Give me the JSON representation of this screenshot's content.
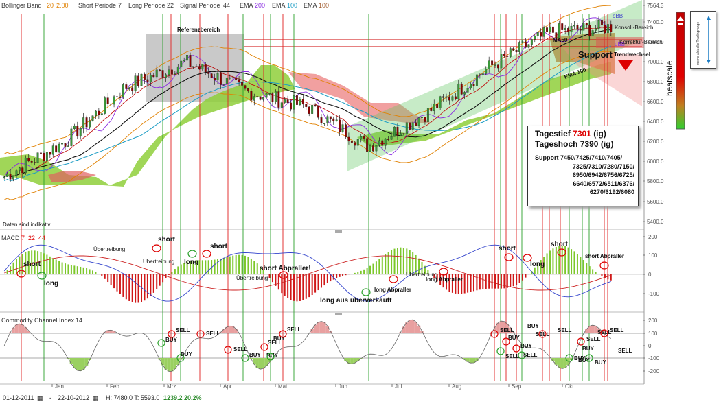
{
  "header": {
    "items": [
      {
        "label": "Bollinger Band",
        "value1": "20",
        "value2": "2.00"
      },
      {
        "label": "Short Periode",
        "value": "7"
      },
      {
        "label": "Long Periode",
        "value": "22"
      },
      {
        "label": "Signal Periode",
        "value": "44"
      },
      {
        "label": "EMA",
        "value": "200"
      },
      {
        "label": "EMA",
        "value": "100"
      },
      {
        "label": "EMA",
        "value": "100"
      }
    ],
    "colors": {
      "bb": "#e08000",
      "ema200": "#8a2be2",
      "ema100a": "#1a9cc4",
      "ema100b": "#a05a2c"
    }
  },
  "main_annotations": {
    "referenzbereich": "Referenzbereich",
    "obb": "oBB",
    "ubb": "uBB",
    "konsolidierung": "Konsol.-Bereich",
    "korrektur": "Korrektur-Bereich",
    "support": "Support",
    "trendwechsel": "Trendwechsel",
    "ma50": "MA50",
    "ema100": "EMA 100",
    "indikativ": "Daten sind indikativ",
    "heatscale": "heatscale",
    "tradingrange": "meine aktuelle Tradingrange"
  },
  "infobox": {
    "tagestief_label": "Tagestief",
    "tagestief_value": "7301",
    "tagestief_suffix": "(ig)",
    "tageshoch": "Tageshoch 7390 (ig)",
    "support_lines": [
      "Support 7450/7425/7410/7405/",
      "7325/7310/7280/7150/",
      "6950/6942/6756/6725/",
      "6640/6572/6511/6376/",
      "6270/6192/6080"
    ]
  },
  "price_axis": [
    "7564.3",
    "7400.0",
    "7200.0",
    "7000.0",
    "6800.0",
    "6600.0",
    "6400.0",
    "6200.0",
    "6000.0",
    "5800.0",
    "5600.0",
    "5400.0"
  ],
  "macd": {
    "title": "MACD",
    "params": [
      "7",
      "22",
      "44"
    ],
    "axis": [
      "200",
      "100",
      "0",
      "-100"
    ],
    "labels": [
      "short",
      "long",
      "Übertreibung",
      "Übertreibung",
      "short",
      "long",
      "short",
      "Übertreibung",
      "short Abpraller!",
      "long aus überverkauft",
      "long Abpraller",
      "Übertreibung",
      "long Abpraller",
      "short",
      "long",
      "short",
      "short Abpraller"
    ]
  },
  "cci": {
    "title": "Commodity Channel Index",
    "param": "14",
    "axis": [
      "200",
      "100",
      "0",
      "-100",
      "-200"
    ],
    "signals": [
      "BUY",
      "SELL",
      "BUY",
      "SELL",
      "SELL",
      "BUY",
      "BUY",
      "SELL",
      "BUY",
      "SELL",
      "SELL",
      "BUY",
      "SELL",
      "BUY",
      "SELL",
      "BUY",
      "SELL",
      "SELL",
      "BUY",
      "BUY",
      "SELL",
      "SELL",
      "BUY",
      "SELL",
      "BUY",
      "SELL"
    ]
  },
  "months": [
    "Jan",
    "Feb",
    "Mrz",
    "Apr",
    "Mai",
    "Jun",
    "Jul",
    "Aug",
    "Sep",
    "Okt"
  ],
  "footer": {
    "from": "01-12-2011",
    "to": "22-10-2012",
    "stats": "H: 7480.0  T: 5593.0",
    "diff": "1239.2",
    "pct": "20.2%"
  },
  "chart_data": {
    "type": "line",
    "title": "",
    "ylim": [
      5400,
      7564.3
    ],
    "x": [
      "2011-12",
      "2012-01",
      "2012-02",
      "2012-03",
      "2012-04",
      "2012-05",
      "2012-06",
      "2012-07",
      "2012-08",
      "2012-09",
      "2012-10"
    ],
    "series": [
      {
        "name": "",
        "values": [
          5850,
          6200,
          6750,
          7000,
          6700,
          6550,
          6150,
          6500,
          6950,
          7300,
          7350
        ]
      }
    ]
  }
}
